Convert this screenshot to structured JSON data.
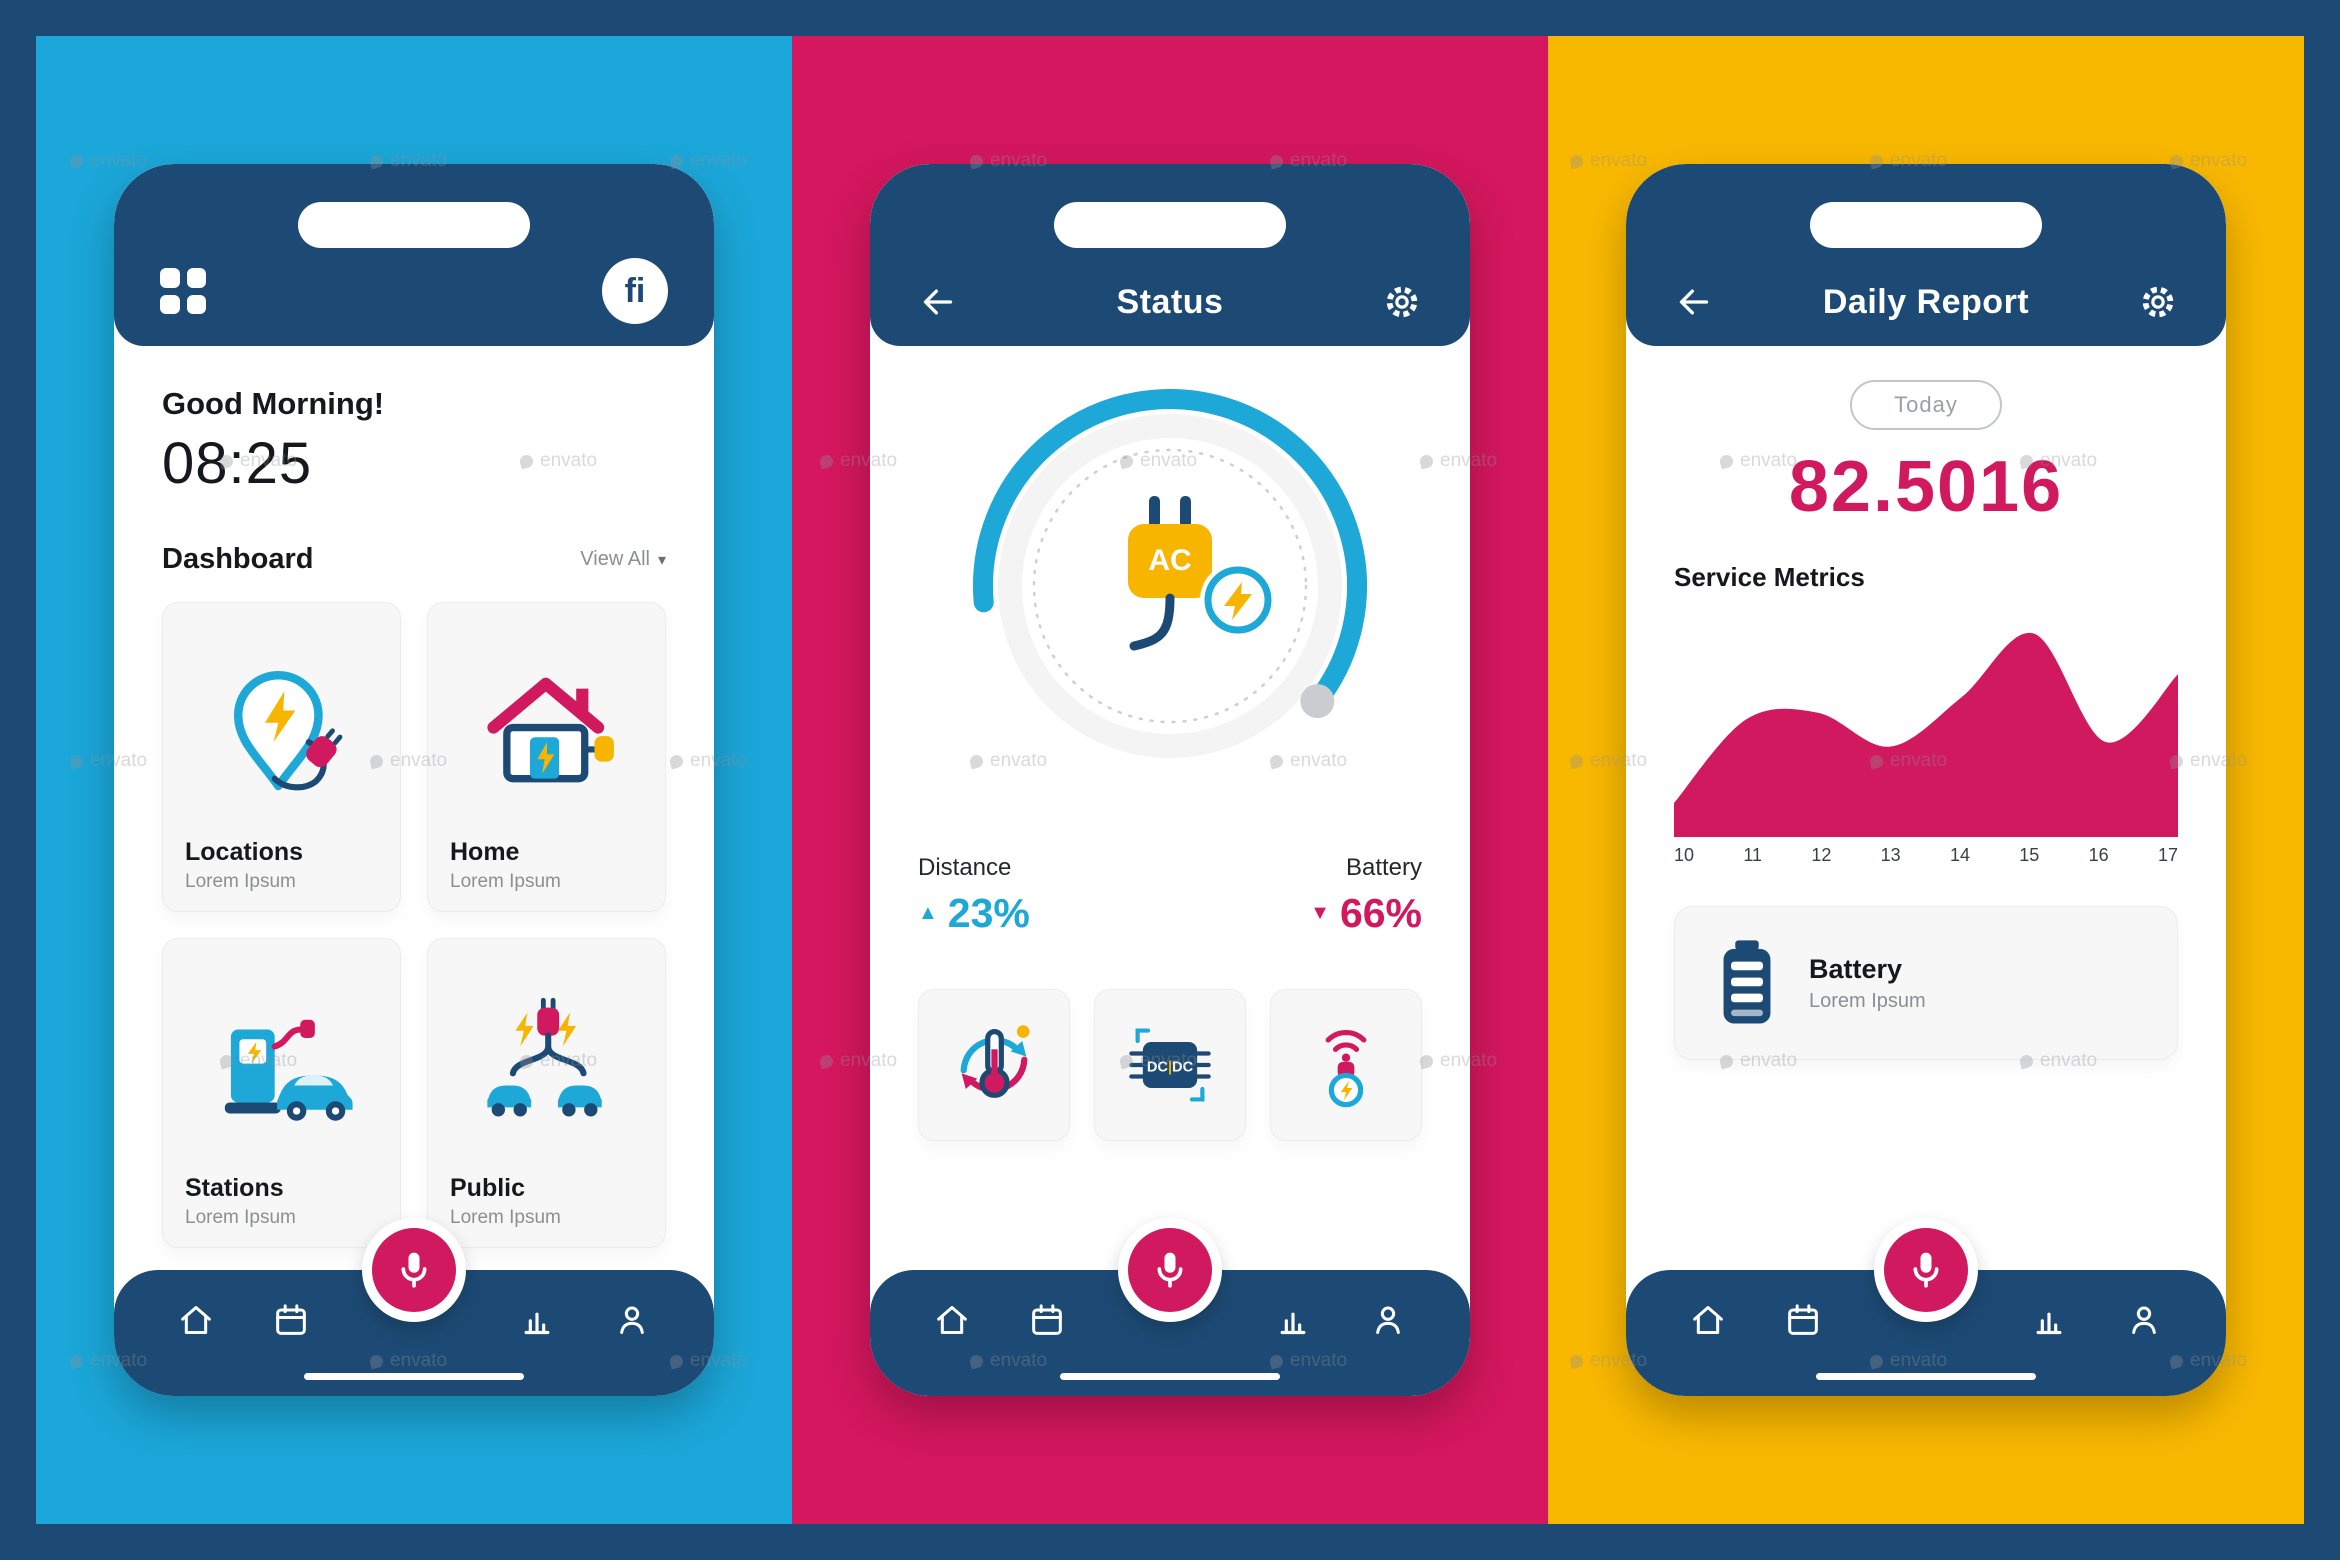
{
  "watermark": {
    "label": "envato"
  },
  "colors": {
    "background": "#1d4a74",
    "panel_cyan": "#1ba7d9",
    "panel_pink": "#d4175e",
    "panel_yellow": "#f9b800",
    "navy": "#1d4a74",
    "accent_cyan": "#1da8d8",
    "accent_pink": "#d1195f",
    "accent_yellow": "#f7b500",
    "card_bg": "#f7f7f8"
  },
  "nav": {
    "items": [
      "home",
      "calendar",
      "mic",
      "stats",
      "profile"
    ]
  },
  "panels": {
    "home": {
      "greeting": "Good Morning!",
      "time": "08:25",
      "section_title": "Dashboard",
      "view_all": "View All",
      "logo": "fi",
      "cards": [
        {
          "title": "Locations",
          "subtitle": "Lorem Ipsum",
          "icon": "ev-location-pin"
        },
        {
          "title": "Home",
          "subtitle": "Lorem Ipsum",
          "icon": "ev-home-charging"
        },
        {
          "title": "Stations",
          "subtitle": "Lorem Ipsum",
          "icon": "ev-station-car"
        },
        {
          "title": "Public",
          "subtitle": "Lorem Ipsum",
          "icon": "ev-public-network"
        }
      ]
    },
    "status": {
      "title": "Status",
      "gauge": {
        "start_deg": 185,
        "end_deg": -38,
        "color": "#1da8d8",
        "center_icon": "ac-plug"
      },
      "stats": [
        {
          "label": "Distance",
          "value": "23%",
          "trend": "up",
          "color": "#1da8d8"
        },
        {
          "label": "Battery",
          "value": "66%",
          "trend": "down",
          "color": "#d1195f"
        }
      ],
      "quick_icons": [
        "temperature-icon",
        "dc-dc-converter-icon",
        "wireless-charging-icon"
      ]
    },
    "report": {
      "title": "Daily Report",
      "period_label": "Today",
      "metric_value": "82.5016",
      "metric_label": "Service Metrics",
      "battery_card": {
        "title": "Battery",
        "subtitle": "Lorem Ipsum"
      }
    }
  },
  "chart_data": {
    "type": "area",
    "title": "Service Metrics",
    "categories": [
      "10",
      "11",
      "12",
      "13",
      "14",
      "15",
      "16",
      "17"
    ],
    "values": [
      15,
      52,
      55,
      40,
      62,
      90,
      42,
      72
    ],
    "ymax": 100,
    "xlabel": "",
    "ylabel": "",
    "color": "#d1195f",
    "grid": false,
    "legend": false
  }
}
